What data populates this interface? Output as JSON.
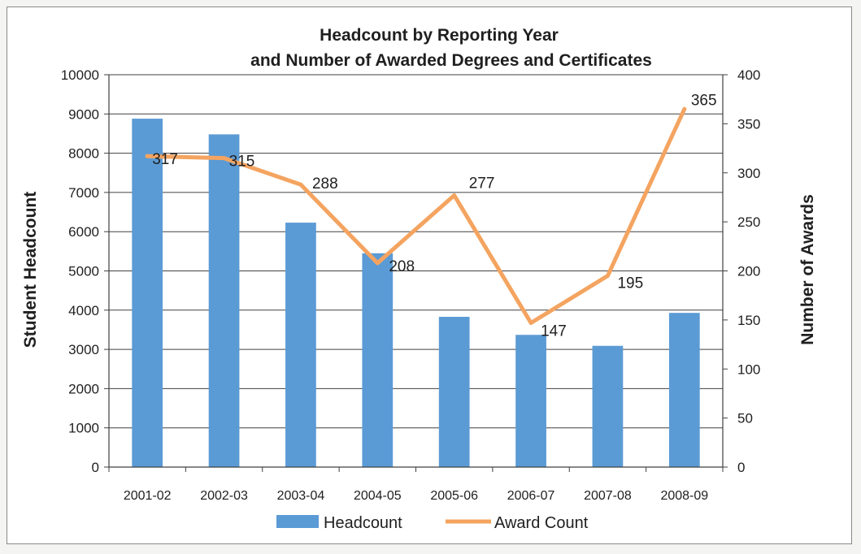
{
  "chart_data": {
    "type": "bar",
    "title": [
      "Headcount by Reporting Year",
      "and Number of Awarded Degrees and Certificates"
    ],
    "categories": [
      "2001-02",
      "2002-03",
      "2003-04",
      "2004-05",
      "2005-06",
      "2006-07",
      "2007-08",
      "2008-09"
    ],
    "series": [
      {
        "name": "Headcount",
        "type": "bar",
        "axis": "left",
        "color": "#5b9bd5",
        "values": [
          8880,
          8480,
          6230,
          5450,
          3830,
          3370,
          3090,
          3930
        ]
      },
      {
        "name": "Award Count",
        "type": "line",
        "axis": "right",
        "color": "#f4a460",
        "values": [
          317,
          315,
          288,
          208,
          277,
          147,
          195,
          365
        ],
        "data_labels": [
          "317",
          "315",
          "288",
          "208",
          "277",
          "147",
          "195",
          "365"
        ]
      }
    ],
    "ylabel": "Student Headcount",
    "ylim": [
      0,
      10000
    ],
    "yticks": [
      "0",
      "1000",
      "2000",
      "3000",
      "4000",
      "5000",
      "6000",
      "7000",
      "8000",
      "9000",
      "10000"
    ],
    "y2label": "Number of Awards",
    "y2lim": [
      0,
      400
    ],
    "y2ticks": [
      "0",
      "50",
      "100",
      "150",
      "200",
      "250",
      "300",
      "350",
      "400"
    ],
    "grid": true,
    "legend": "bottom"
  }
}
